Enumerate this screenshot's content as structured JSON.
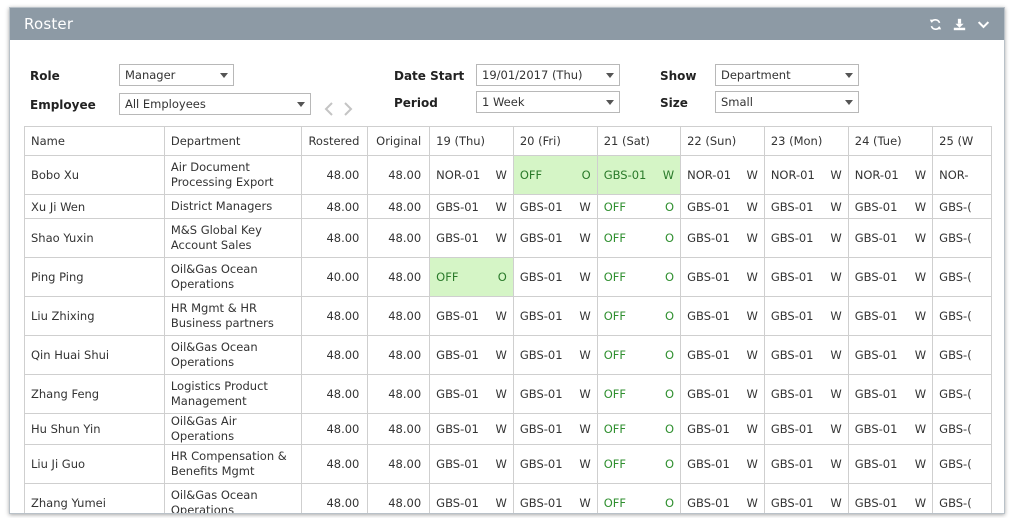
{
  "panel": {
    "title": "Roster",
    "icons": [
      "refresh-icon",
      "download-icon",
      "chevron-down-icon"
    ]
  },
  "filters": {
    "role": {
      "label": "Role",
      "value": "Manager"
    },
    "employee": {
      "label": "Employee",
      "value": "All Employees"
    },
    "date_start": {
      "label": "Date Start",
      "value": "19/01/2017 (Thu)"
    },
    "period": {
      "label": "Period",
      "value": "1 Week"
    },
    "show": {
      "label": "Show",
      "value": "Department"
    },
    "size": {
      "label": "Size",
      "value": "Small"
    }
  },
  "table": {
    "headers": [
      "Name",
      "Department",
      "Rostered",
      "Original",
      "19 (Thu)",
      "20 (Fri)",
      "21 (Sat)",
      "22 (Sun)",
      "23 (Mon)",
      "24 (Tue)",
      "25 (W"
    ],
    "rows": [
      {
        "name": "Bobo Xu",
        "department": "Air Document Processing Export",
        "rostered": "48.00",
        "rostered_alert": true,
        "original": "48.00",
        "shifts": [
          {
            "code": "NOR-01",
            "type": "W",
            "off": false,
            "hl": false
          },
          {
            "code": "OFF",
            "type": "O",
            "off": true,
            "hl": true
          },
          {
            "code": "GBS-01",
            "type": "W",
            "off": false,
            "hl": true
          },
          {
            "code": "NOR-01",
            "type": "W",
            "off": false,
            "hl": false
          },
          {
            "code": "NOR-01",
            "type": "W",
            "off": false,
            "hl": false
          },
          {
            "code": "NOR-01",
            "type": "W",
            "off": false,
            "hl": false
          },
          {
            "code": "NOR-",
            "type": "",
            "off": false,
            "hl": false
          }
        ]
      },
      {
        "name": "Xu Ji Wen",
        "department": "District Managers",
        "rostered": "48.00",
        "rostered_alert": false,
        "original": "48.00",
        "shifts": [
          {
            "code": "GBS-01",
            "type": "W",
            "off": false,
            "hl": false
          },
          {
            "code": "GBS-01",
            "type": "W",
            "off": false,
            "hl": false
          },
          {
            "code": "OFF",
            "type": "O",
            "off": true,
            "hl": false
          },
          {
            "code": "GBS-01",
            "type": "W",
            "off": false,
            "hl": false
          },
          {
            "code": "GBS-01",
            "type": "W",
            "off": false,
            "hl": false
          },
          {
            "code": "GBS-01",
            "type": "W",
            "off": false,
            "hl": false
          },
          {
            "code": "GBS-(",
            "type": "",
            "off": false,
            "hl": false
          }
        ]
      },
      {
        "name": "Shao Yuxin",
        "department": "M&S Global Key Account Sales",
        "rostered": "48.00",
        "rostered_alert": false,
        "original": "48.00",
        "shifts": [
          {
            "code": "GBS-01",
            "type": "W",
            "off": false,
            "hl": false
          },
          {
            "code": "GBS-01",
            "type": "W",
            "off": false,
            "hl": false
          },
          {
            "code": "OFF",
            "type": "O",
            "off": true,
            "hl": false
          },
          {
            "code": "GBS-01",
            "type": "W",
            "off": false,
            "hl": false
          },
          {
            "code": "GBS-01",
            "type": "W",
            "off": false,
            "hl": false
          },
          {
            "code": "GBS-01",
            "type": "W",
            "off": false,
            "hl": false
          },
          {
            "code": "GBS-(",
            "type": "",
            "off": false,
            "hl": false
          }
        ]
      },
      {
        "name": "Ping Ping",
        "department": "Oil&Gas Ocean Operations",
        "rostered": "40.00",
        "rostered_alert": true,
        "original": "48.00",
        "shifts": [
          {
            "code": "OFF",
            "type": "O",
            "off": true,
            "hl": true
          },
          {
            "code": "GBS-01",
            "type": "W",
            "off": false,
            "hl": false
          },
          {
            "code": "OFF",
            "type": "O",
            "off": true,
            "hl": false
          },
          {
            "code": "GBS-01",
            "type": "W",
            "off": false,
            "hl": false
          },
          {
            "code": "GBS-01",
            "type": "W",
            "off": false,
            "hl": false
          },
          {
            "code": "GBS-01",
            "type": "W",
            "off": false,
            "hl": false
          },
          {
            "code": "GBS-(",
            "type": "",
            "off": false,
            "hl": false
          }
        ]
      },
      {
        "name": "Liu Zhixing",
        "department": "HR Mgmt & HR Business partners",
        "rostered": "48.00",
        "rostered_alert": false,
        "original": "48.00",
        "shifts": [
          {
            "code": "GBS-01",
            "type": "W",
            "off": false,
            "hl": false
          },
          {
            "code": "GBS-01",
            "type": "W",
            "off": false,
            "hl": false
          },
          {
            "code": "OFF",
            "type": "O",
            "off": true,
            "hl": false
          },
          {
            "code": "GBS-01",
            "type": "W",
            "off": false,
            "hl": false
          },
          {
            "code": "GBS-01",
            "type": "W",
            "off": false,
            "hl": false
          },
          {
            "code": "GBS-01",
            "type": "W",
            "off": false,
            "hl": false
          },
          {
            "code": "GBS-(",
            "type": "",
            "off": false,
            "hl": false
          }
        ]
      },
      {
        "name": "Qin Huai Shui",
        "department": "Oil&Gas Ocean Operations",
        "rostered": "48.00",
        "rostered_alert": false,
        "original": "48.00",
        "shifts": [
          {
            "code": "GBS-01",
            "type": "W",
            "off": false,
            "hl": false
          },
          {
            "code": "GBS-01",
            "type": "W",
            "off": false,
            "hl": false
          },
          {
            "code": "OFF",
            "type": "O",
            "off": true,
            "hl": false
          },
          {
            "code": "GBS-01",
            "type": "W",
            "off": false,
            "hl": false
          },
          {
            "code": "GBS-01",
            "type": "W",
            "off": false,
            "hl": false
          },
          {
            "code": "GBS-01",
            "type": "W",
            "off": false,
            "hl": false
          },
          {
            "code": "GBS-(",
            "type": "",
            "off": false,
            "hl": false
          }
        ]
      },
      {
        "name": "Zhang Feng",
        "department": "Logistics Product Management",
        "rostered": "48.00",
        "rostered_alert": false,
        "original": "48.00",
        "shifts": [
          {
            "code": "GBS-01",
            "type": "W",
            "off": false,
            "hl": false
          },
          {
            "code": "GBS-01",
            "type": "W",
            "off": false,
            "hl": false
          },
          {
            "code": "OFF",
            "type": "O",
            "off": true,
            "hl": false
          },
          {
            "code": "GBS-01",
            "type": "W",
            "off": false,
            "hl": false
          },
          {
            "code": "GBS-01",
            "type": "W",
            "off": false,
            "hl": false
          },
          {
            "code": "GBS-01",
            "type": "W",
            "off": false,
            "hl": false
          },
          {
            "code": "GBS-(",
            "type": "",
            "off": false,
            "hl": false
          }
        ]
      },
      {
        "name": "Hu Shun Yin",
        "department": "Oil&Gas Air Operations",
        "rostered": "48.00",
        "rostered_alert": false,
        "original": "48.00",
        "shifts": [
          {
            "code": "GBS-01",
            "type": "W",
            "off": false,
            "hl": false
          },
          {
            "code": "GBS-01",
            "type": "W",
            "off": false,
            "hl": false
          },
          {
            "code": "OFF",
            "type": "O",
            "off": true,
            "hl": false
          },
          {
            "code": "GBS-01",
            "type": "W",
            "off": false,
            "hl": false
          },
          {
            "code": "GBS-01",
            "type": "W",
            "off": false,
            "hl": false
          },
          {
            "code": "GBS-01",
            "type": "W",
            "off": false,
            "hl": false
          },
          {
            "code": "GBS-(",
            "type": "",
            "off": false,
            "hl": false
          }
        ]
      },
      {
        "name": "Liu Ji Guo",
        "department": "HR Compensation & Benefits Mgmt",
        "rostered": "48.00",
        "rostered_alert": false,
        "original": "48.00",
        "shifts": [
          {
            "code": "GBS-01",
            "type": "W",
            "off": false,
            "hl": false
          },
          {
            "code": "GBS-01",
            "type": "W",
            "off": false,
            "hl": false
          },
          {
            "code": "OFF",
            "type": "O",
            "off": true,
            "hl": false
          },
          {
            "code": "GBS-01",
            "type": "W",
            "off": false,
            "hl": false
          },
          {
            "code": "GBS-01",
            "type": "W",
            "off": false,
            "hl": false
          },
          {
            "code": "GBS-01",
            "type": "W",
            "off": false,
            "hl": false
          },
          {
            "code": "GBS-(",
            "type": "",
            "off": false,
            "hl": false
          }
        ]
      },
      {
        "name": "Zhang Yumei",
        "department": "Oil&Gas Ocean Operations",
        "rostered": "48.00",
        "rostered_alert": false,
        "original": "48.00",
        "shifts": [
          {
            "code": "GBS-01",
            "type": "W",
            "off": false,
            "hl": false
          },
          {
            "code": "GBS-01",
            "type": "W",
            "off": false,
            "hl": false
          },
          {
            "code": "OFF",
            "type": "O",
            "off": true,
            "hl": false
          },
          {
            "code": "GBS-01",
            "type": "W",
            "off": false,
            "hl": false
          },
          {
            "code": "GBS-01",
            "type": "W",
            "off": false,
            "hl": false
          },
          {
            "code": "GBS-01",
            "type": "W",
            "off": false,
            "hl": false
          },
          {
            "code": "GBS-(",
            "type": "",
            "off": false,
            "hl": false
          }
        ]
      }
    ]
  },
  "colors": {
    "header_bg": "#8d9aa5",
    "alert_text": "#e02020",
    "off_text": "#2f8f2f",
    "highlight_bg": "#d5f5c6"
  }
}
